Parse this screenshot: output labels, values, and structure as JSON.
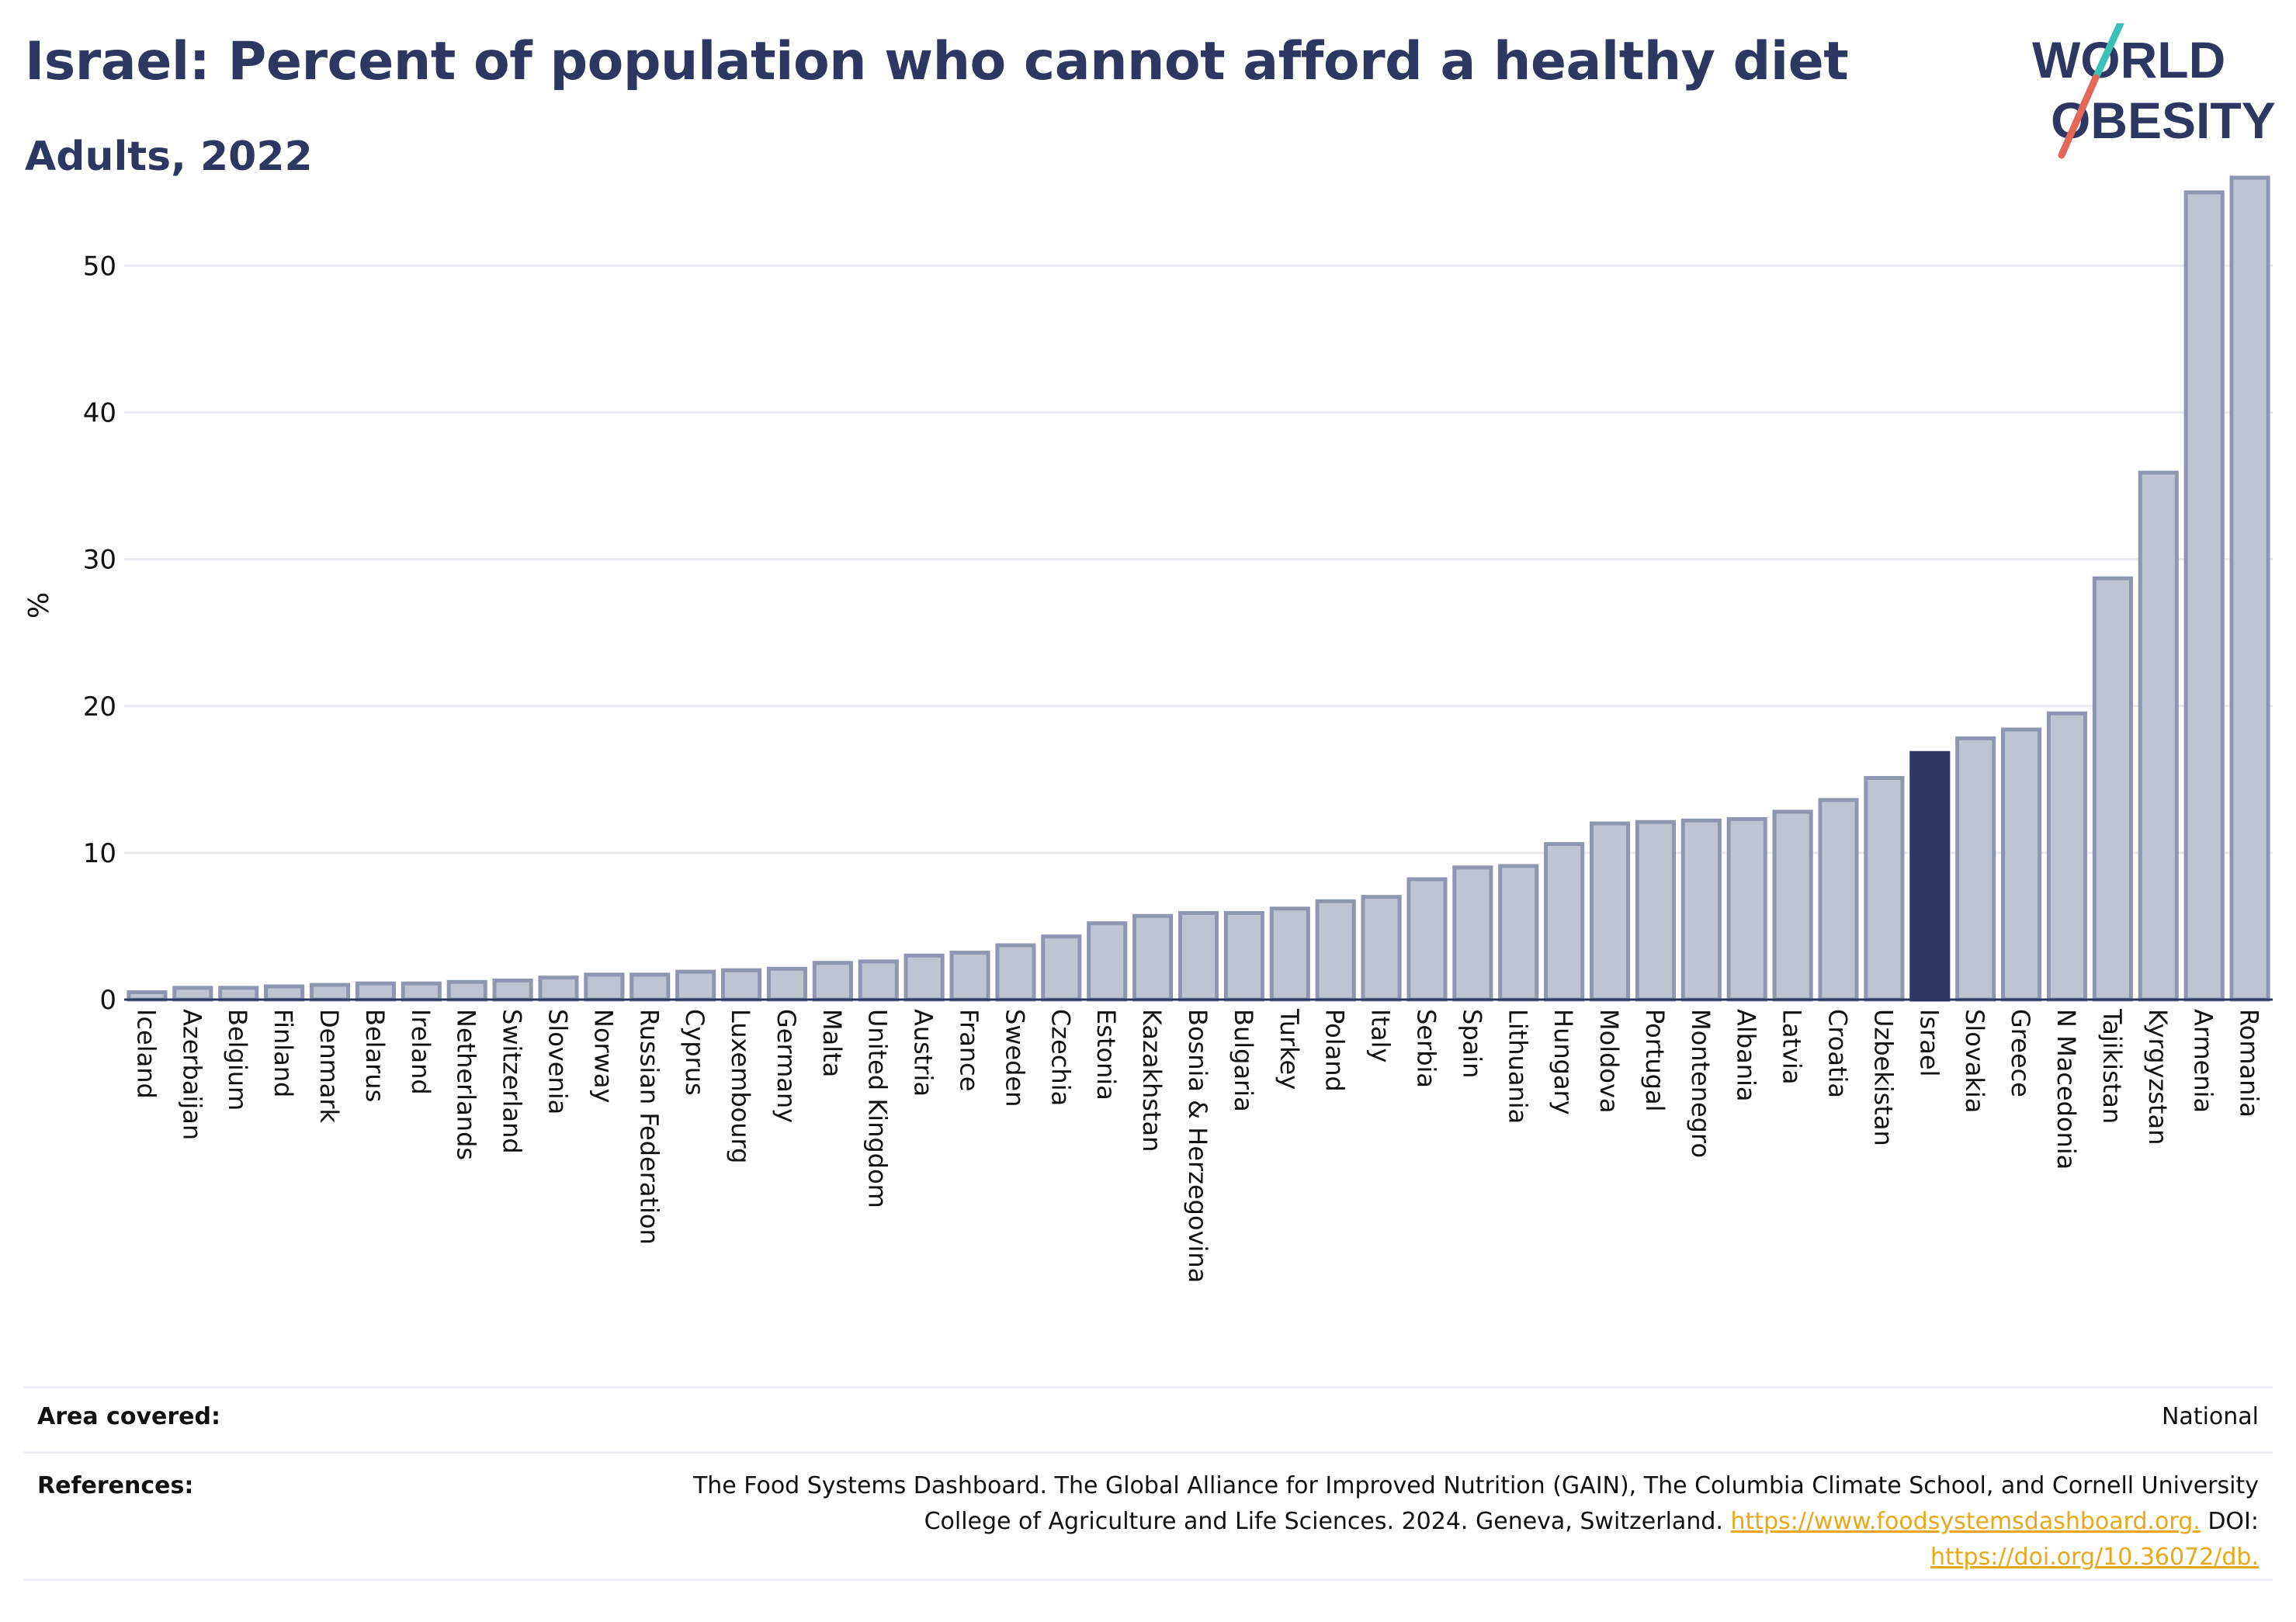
{
  "header": {
    "title": "Israel: Percent of population who cannot afford a healthy diet",
    "subtitle": "Adults, 2022"
  },
  "logo": {
    "line1": "WORLD",
    "line2": "OBESITY"
  },
  "colors": {
    "bar": "#bfc4d3",
    "bar_border": "#8f96b0",
    "highlight": "#2d3761",
    "text": "#2d3761",
    "grid": "#e9ebf2",
    "link": "#e8a81a"
  },
  "chart_data": {
    "type": "bar",
    "ylabel": "%",
    "xlabel": "",
    "ylim": [
      0,
      57
    ],
    "yticks": [
      0,
      10,
      20,
      30,
      40,
      50
    ],
    "grid": true,
    "highlight": "Israel",
    "categories": [
      "Iceland",
      "Azerbaijan",
      "Belgium",
      "Finland",
      "Denmark",
      "Belarus",
      "Ireland",
      "Netherlands",
      "Switzerland",
      "Slovenia",
      "Norway",
      "Russian Federation",
      "Cyprus",
      "Luxembourg",
      "Germany",
      "Malta",
      "United Kingdom",
      "Austria",
      "France",
      "Sweden",
      "Czechia",
      "Estonia",
      "Kazakhstan",
      "Bosnia & Herzegovina",
      "Bulgaria",
      "Turkey",
      "Poland",
      "Italy",
      "Serbia",
      "Spain",
      "Lithuania",
      "Hungary",
      "Moldova",
      "Portugal",
      "Montenegro",
      "Albania",
      "Latvia",
      "Croatia",
      "Uzbekistan",
      "Israel",
      "Slovakia",
      "Greece",
      "N Macedonia",
      "Tajikistan",
      "Kyrgyzstan",
      "Armenia",
      "Romania"
    ],
    "values": [
      0.5,
      0.8,
      0.8,
      0.9,
      1.0,
      1.1,
      1.1,
      1.2,
      1.3,
      1.5,
      1.7,
      1.7,
      1.9,
      2.0,
      2.1,
      2.5,
      2.6,
      3.0,
      3.2,
      3.7,
      4.3,
      5.2,
      5.7,
      5.9,
      5.9,
      6.2,
      6.7,
      7.0,
      8.2,
      9.0,
      9.1,
      10.6,
      12.0,
      12.1,
      12.2,
      12.3,
      12.8,
      13.6,
      15.1,
      16.8,
      17.8,
      18.4,
      19.5,
      28.7,
      35.9,
      55.0,
      56.0
    ]
  },
  "info": {
    "area_label": "Area covered:",
    "area_value": "National",
    "references_label": "References:",
    "references_line1": "The Food Systems Dashboard. The Global Alliance for Improved Nutrition (GAIN), The Columbia Climate School, and Cornell University",
    "references_line2": "College of Agriculture and Life Sciences. 2024. Geneva, Switzerland.",
    "references_link1": "https://www.foodsystemsdashboard.org.",
    "references_doi": "DOI:",
    "references_link2": "https://doi.org/10.36072/db."
  }
}
